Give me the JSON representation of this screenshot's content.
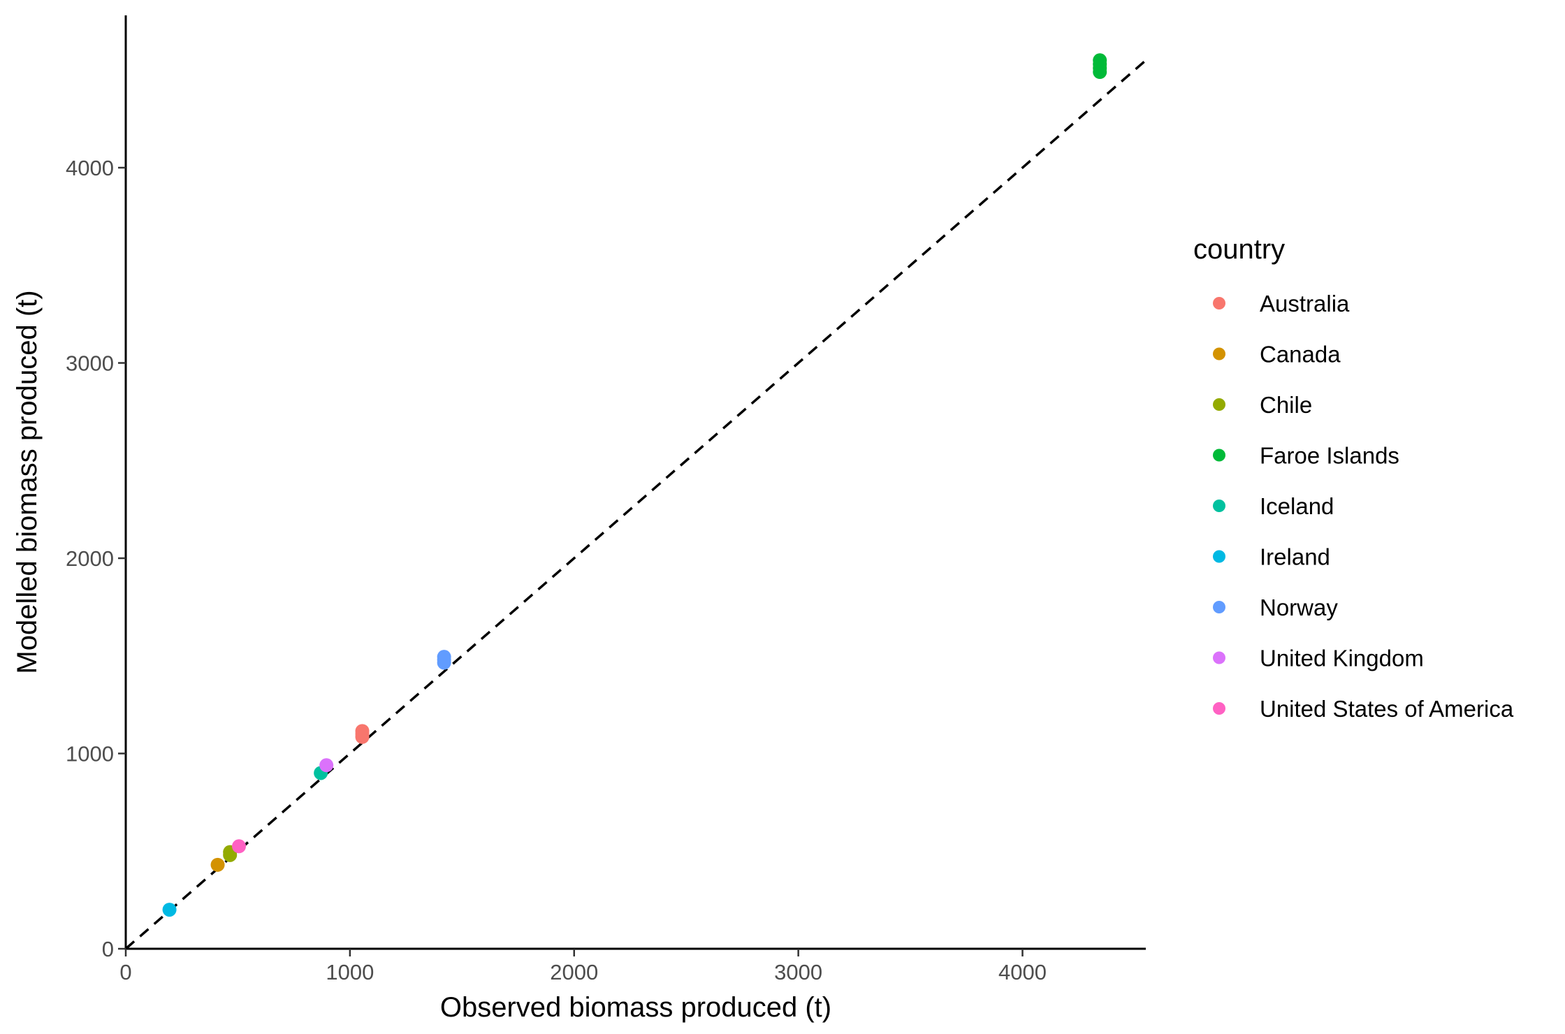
{
  "chart_data": {
    "type": "scatter",
    "title": "",
    "xlabel": "Observed biomass produced (t)",
    "ylabel": "Modelled biomass produced (t)",
    "xlim": [
      0,
      4550
    ],
    "ylim": [
      0,
      4780
    ],
    "x_ticks": [
      0,
      1000,
      2000,
      3000,
      4000
    ],
    "y_ticks": [
      0,
      1000,
      2000,
      3000,
      4000
    ],
    "x_tick_labels": [
      "0",
      "1000",
      "2000",
      "3000",
      "4000"
    ],
    "y_tick_labels": [
      "0",
      "1000",
      "2000",
      "3000",
      "4000"
    ],
    "grid": false,
    "reference_line": {
      "type": "identity",
      "style": "dashed",
      "color": "#000000"
    },
    "legend": {
      "title": "country",
      "position": "right"
    },
    "series": [
      {
        "name": "Australia",
        "color": "#F8766D",
        "points": [
          [
            1055,
            1085
          ],
          [
            1055,
            1100
          ],
          [
            1055,
            1115
          ]
        ]
      },
      {
        "name": "Canada",
        "color": "#D39200",
        "points": [
          [
            410,
            430
          ]
        ]
      },
      {
        "name": "Chile",
        "color": "#93AA00",
        "points": [
          [
            465,
            480
          ],
          [
            465,
            495
          ]
        ]
      },
      {
        "name": "Faroe Islands",
        "color": "#00BA38",
        "points": [
          [
            4345,
            4490
          ],
          [
            4345,
            4510
          ],
          [
            4345,
            4530
          ],
          [
            4345,
            4550
          ]
        ]
      },
      {
        "name": "Iceland",
        "color": "#00C19F",
        "points": [
          [
            870,
            900
          ]
        ]
      },
      {
        "name": "Ireland",
        "color": "#00B9E3",
        "points": [
          [
            195,
            200
          ]
        ]
      },
      {
        "name": "Norway",
        "color": "#619CFF",
        "points": [
          [
            1420,
            1465
          ],
          [
            1420,
            1480
          ],
          [
            1420,
            1495
          ]
        ]
      },
      {
        "name": "United Kingdom",
        "color": "#DB72FB",
        "points": [
          [
            895,
            940
          ]
        ]
      },
      {
        "name": "United States of America",
        "color": "#FF61C3",
        "points": [
          [
            505,
            525
          ]
        ]
      }
    ]
  }
}
